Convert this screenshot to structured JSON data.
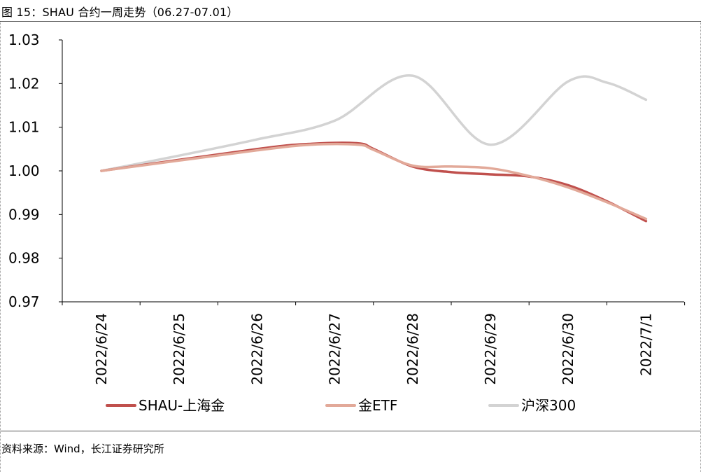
{
  "header": {
    "title": "图 15：SHAU 合约一周走势（06.27-07.01）"
  },
  "footer": {
    "source": "资料来源：Wind，长江证券研究所"
  },
  "chart_data": {
    "type": "line",
    "title": "",
    "xlabel": "",
    "ylabel": "",
    "categories": [
      "2022/6/24",
      "2022/6/25",
      "2022/6/26",
      "2022/6/27",
      "2022/6/28",
      "2022/6/29",
      "2022/6/30",
      "2022/7/1"
    ],
    "ylim": [
      0.97,
      1.03
    ],
    "yticks": [
      "1.03",
      "1.02",
      "1.01",
      "1.00",
      "0.99",
      "0.98",
      "0.97"
    ],
    "legend_position": "bottom",
    "grid": false,
    "series": [
      {
        "name": "SHAU-上海金",
        "color": "#c0504d",
        "x": [
          0,
          2,
          2.7,
          3.3,
          3.5,
          4,
          4.5,
          5,
          5.5,
          6,
          6.5,
          7
        ],
        "values": [
          1.0,
          1.005,
          1.0062,
          1.0063,
          1.005,
          1.001,
          0.9997,
          0.9992,
          0.9987,
          0.9967,
          0.993,
          0.9885
        ]
      },
      {
        "name": "金ETF",
        "color": "#e2a999",
        "x": [
          0,
          2,
          2.7,
          3.3,
          3.5,
          4,
          4.5,
          5,
          5.5,
          6,
          6.5,
          7
        ],
        "values": [
          1.0,
          1.0047,
          1.006,
          1.006,
          1.0048,
          1.0012,
          1.001,
          1.0006,
          0.9988,
          0.9962,
          0.9928,
          0.989
        ]
      },
      {
        "name": "沪深300",
        "color": "#d3d3d3",
        "x": [
          0,
          1,
          2,
          3,
          4,
          5,
          6,
          6.5,
          7
        ],
        "values": [
          1.0,
          1.0035,
          1.0072,
          1.0115,
          1.0218,
          1.006,
          1.0205,
          1.0202,
          1.0163
        ]
      }
    ]
  }
}
